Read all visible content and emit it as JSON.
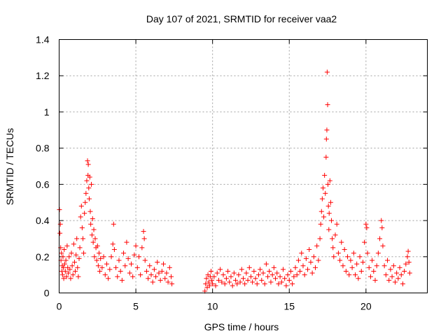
{
  "chart_data": {
    "type": "scatter",
    "title": "Day 107 of 2021, SRMTID for receiver vaa2",
    "xlabel": "GPS time / hours",
    "ylabel": "SRMTID / TECUs",
    "xlim": [
      0,
      24
    ],
    "ylim": [
      0,
      1.4
    ],
    "xticks": [
      0,
      5,
      10,
      15,
      20
    ],
    "yticks": [
      0,
      0.2,
      0.4,
      0.6,
      0.8,
      1.0,
      1.2,
      1.4
    ],
    "xtick_labels": [
      "0",
      "5",
      "10",
      "15",
      "20"
    ],
    "ytick_labels": [
      "0",
      "0.2",
      "0.4",
      "0.6",
      "0.8",
      "1",
      "1.2",
      "1.4"
    ],
    "grid": true,
    "marker": "+",
    "color": "#ff0000",
    "series": [
      {
        "name": "vaa2",
        "points": [
          [
            0.02,
            0.46
          ],
          [
            0.05,
            0.33
          ],
          [
            0.08,
            0.38
          ],
          [
            0.1,
            0.25
          ],
          [
            0.12,
            0.18
          ],
          [
            0.15,
            0.22
          ],
          [
            0.18,
            0.12
          ],
          [
            0.2,
            0.15
          ],
          [
            0.22,
            0.1
          ],
          [
            0.25,
            0.2
          ],
          [
            0.28,
            0.14
          ],
          [
            0.3,
            0.08
          ],
          [
            0.33,
            0.24
          ],
          [
            0.36,
            0.16
          ],
          [
            0.4,
            0.12
          ],
          [
            0.44,
            0.18
          ],
          [
            0.48,
            0.09
          ],
          [
            0.52,
            0.26
          ],
          [
            0.56,
            0.14
          ],
          [
            0.6,
            0.11
          ],
          [
            0.65,
            0.2
          ],
          [
            0.7,
            0.13
          ],
          [
            0.75,
            0.08
          ],
          [
            0.8,
            0.22
          ],
          [
            0.85,
            0.15
          ],
          [
            0.9,
            0.1
          ],
          [
            0.95,
            0.27
          ],
          [
            1.0,
            0.17
          ],
          [
            1.05,
            0.12
          ],
          [
            1.1,
            0.21
          ],
          [
            1.15,
            0.3
          ],
          [
            1.2,
            0.14
          ],
          [
            1.25,
            0.09
          ],
          [
            1.3,
            0.19
          ],
          [
            1.35,
            0.25
          ],
          [
            1.4,
            0.42
          ],
          [
            1.45,
            0.48
          ],
          [
            1.5,
            0.36
          ],
          [
            1.55,
            0.3
          ],
          [
            1.6,
            0.22
          ],
          [
            1.65,
            0.44
          ],
          [
            1.7,
            0.5
          ],
          [
            1.75,
            0.55
          ],
          [
            1.8,
            0.62
          ],
          [
            1.85,
            0.73
          ],
          [
            1.88,
            0.65
          ],
          [
            1.9,
            0.71
          ],
          [
            1.93,
            0.58
          ],
          [
            1.96,
            0.52
          ],
          [
            2.0,
            0.64
          ],
          [
            2.03,
            0.45
          ],
          [
            2.06,
            0.38
          ],
          [
            2.1,
            0.6
          ],
          [
            2.14,
            0.32
          ],
          [
            2.18,
            0.41
          ],
          [
            2.22,
            0.28
          ],
          [
            2.26,
            0.35
          ],
          [
            2.3,
            0.2
          ],
          [
            2.35,
            0.3
          ],
          [
            2.4,
            0.25
          ],
          [
            2.45,
            0.18
          ],
          [
            2.5,
            0.26
          ],
          [
            2.55,
            0.15
          ],
          [
            2.6,
            0.22
          ],
          [
            2.65,
            0.12
          ],
          [
            2.7,
            0.19
          ],
          [
            2.8,
            0.14
          ],
          [
            2.9,
            0.2
          ],
          [
            3.0,
            0.1
          ],
          [
            3.1,
            0.16
          ],
          [
            3.2,
            0.08
          ],
          [
            3.3,
            0.13
          ],
          [
            3.4,
            0.2
          ],
          [
            3.5,
            0.27
          ],
          [
            3.55,
            0.38
          ],
          [
            3.6,
            0.24
          ],
          [
            3.7,
            0.14
          ],
          [
            3.8,
            0.09
          ],
          [
            3.9,
            0.18
          ],
          [
            4.0,
            0.12
          ],
          [
            4.1,
            0.07
          ],
          [
            4.2,
            0.22
          ],
          [
            4.3,
            0.15
          ],
          [
            4.4,
            0.28
          ],
          [
            4.5,
            0.19
          ],
          [
            4.6,
            0.11
          ],
          [
            4.7,
            0.16
          ],
          [
            4.8,
            0.09
          ],
          [
            4.9,
            0.21
          ],
          [
            5.0,
            0.26
          ],
          [
            5.1,
            0.14
          ],
          [
            5.2,
            0.2
          ],
          [
            5.3,
            0.1
          ],
          [
            5.4,
            0.25
          ],
          [
            5.5,
            0.34
          ],
          [
            5.55,
            0.3
          ],
          [
            5.6,
            0.18
          ],
          [
            5.7,
            0.12
          ],
          [
            5.8,
            0.08
          ],
          [
            5.9,
            0.15
          ],
          [
            6.0,
            0.1
          ],
          [
            6.1,
            0.06
          ],
          [
            6.2,
            0.13
          ],
          [
            6.3,
            0.09
          ],
          [
            6.4,
            0.17
          ],
          [
            6.5,
            0.11
          ],
          [
            6.6,
            0.07
          ],
          [
            6.7,
            0.12
          ],
          [
            6.8,
            0.16
          ],
          [
            6.9,
            0.08
          ],
          [
            7.0,
            0.11
          ],
          [
            7.1,
            0.06
          ],
          [
            7.2,
            0.14
          ],
          [
            7.3,
            0.09
          ],
          [
            7.35,
            0.05
          ],
          [
            9.5,
            0.01
          ],
          [
            9.55,
            0.05
          ],
          [
            9.6,
            0.08
          ],
          [
            9.65,
            0.03
          ],
          [
            9.7,
            0.1
          ],
          [
            9.75,
            0.06
          ],
          [
            9.8,
            0.04
          ],
          [
            9.85,
            0.09
          ],
          [
            9.9,
            0.12
          ],
          [
            9.95,
            0.07
          ],
          [
            10.0,
            0.05
          ],
          [
            10.1,
            0.09
          ],
          [
            10.2,
            0.04
          ],
          [
            10.3,
            0.11
          ],
          [
            10.4,
            0.07
          ],
          [
            10.5,
            0.13
          ],
          [
            10.6,
            0.06
          ],
          [
            10.7,
            0.1
          ],
          [
            10.8,
            0.05
          ],
          [
            10.9,
            0.08
          ],
          [
            11.0,
            0.12
          ],
          [
            11.1,
            0.06
          ],
          [
            11.2,
            0.09
          ],
          [
            11.3,
            0.04
          ],
          [
            11.4,
            0.11
          ],
          [
            11.5,
            0.07
          ],
          [
            11.6,
            0.05
          ],
          [
            11.7,
            0.1
          ],
          [
            11.8,
            0.06
          ],
          [
            11.9,
            0.13
          ],
          [
            12.0,
            0.08
          ],
          [
            12.1,
            0.05
          ],
          [
            12.2,
            0.11
          ],
          [
            12.3,
            0.07
          ],
          [
            12.4,
            0.14
          ],
          [
            12.5,
            0.09
          ],
          [
            12.6,
            0.06
          ],
          [
            12.7,
            0.12
          ],
          [
            12.8,
            0.08
          ],
          [
            12.9,
            0.05
          ],
          [
            13.0,
            0.1
          ],
          [
            13.1,
            0.13
          ],
          [
            13.2,
            0.07
          ],
          [
            13.3,
            0.11
          ],
          [
            13.4,
            0.05
          ],
          [
            13.5,
            0.16
          ],
          [
            13.6,
            0.09
          ],
          [
            13.7,
            0.12
          ],
          [
            13.8,
            0.06
          ],
          [
            13.9,
            0.1
          ],
          [
            14.0,
            0.14
          ],
          [
            14.1,
            0.08
          ],
          [
            14.2,
            0.11
          ],
          [
            14.3,
            0.05
          ],
          [
            14.4,
            0.09
          ],
          [
            14.5,
            0.06
          ],
          [
            14.6,
            0.13
          ],
          [
            14.7,
            0.08
          ],
          [
            14.8,
            0.04
          ],
          [
            14.9,
            0.1
          ],
          [
            15.0,
            0.07
          ],
          [
            15.1,
            0.12
          ],
          [
            15.2,
            0.05
          ],
          [
            15.3,
            0.09
          ],
          [
            15.4,
            0.14
          ],
          [
            15.5,
            0.1
          ],
          [
            15.6,
            0.18
          ],
          [
            15.7,
            0.12
          ],
          [
            15.8,
            0.22
          ],
          [
            15.9,
            0.15
          ],
          [
            16.0,
            0.1
          ],
          [
            16.1,
            0.19
          ],
          [
            16.2,
            0.13
          ],
          [
            16.3,
            0.24
          ],
          [
            16.4,
            0.17
          ],
          [
            16.5,
            0.11
          ],
          [
            16.6,
            0.2
          ],
          [
            16.7,
            0.14
          ],
          [
            16.8,
            0.26
          ],
          [
            16.9,
            0.18
          ],
          [
            17.0,
            0.3
          ],
          [
            17.05,
            0.38
          ],
          [
            17.1,
            0.45
          ],
          [
            17.15,
            0.52
          ],
          [
            17.2,
            0.58
          ],
          [
            17.25,
            0.42
          ],
          [
            17.3,
            0.65
          ],
          [
            17.35,
            0.55
          ],
          [
            17.4,
            0.75
          ],
          [
            17.42,
            0.85
          ],
          [
            17.45,
            0.9
          ],
          [
            17.47,
            1.22
          ],
          [
            17.5,
            1.04
          ],
          [
            17.52,
            0.6
          ],
          [
            17.55,
            0.48
          ],
          [
            17.58,
            0.35
          ],
          [
            17.6,
            0.44
          ],
          [
            17.65,
            0.62
          ],
          [
            17.7,
            0.5
          ],
          [
            17.75,
            0.4
          ],
          [
            17.8,
            0.3
          ],
          [
            17.85,
            0.25
          ],
          [
            17.9,
            0.2
          ],
          [
            18.0,
            0.32
          ],
          [
            18.1,
            0.38
          ],
          [
            18.2,
            0.22
          ],
          [
            18.3,
            0.18
          ],
          [
            18.4,
            0.28
          ],
          [
            18.5,
            0.15
          ],
          [
            18.6,
            0.24
          ],
          [
            18.7,
            0.12
          ],
          [
            18.8,
            0.2
          ],
          [
            18.9,
            0.1
          ],
          [
            19.0,
            0.18
          ],
          [
            19.1,
            0.14
          ],
          [
            19.2,
            0.22
          ],
          [
            19.3,
            0.1
          ],
          [
            19.4,
            0.16
          ],
          [
            19.5,
            0.08
          ],
          [
            19.6,
            0.2
          ],
          [
            19.7,
            0.12
          ],
          [
            19.8,
            0.17
          ],
          [
            19.9,
            0.28
          ],
          [
            20.0,
            0.38
          ],
          [
            20.05,
            0.36
          ],
          [
            20.1,
            0.22
          ],
          [
            20.2,
            0.14
          ],
          [
            20.3,
            0.09
          ],
          [
            20.4,
            0.18
          ],
          [
            20.5,
            0.12
          ],
          [
            20.6,
            0.07
          ],
          [
            20.7,
            0.15
          ],
          [
            20.8,
            0.22
          ],
          [
            20.9,
            0.3
          ],
          [
            21.0,
            0.4
          ],
          [
            21.05,
            0.36
          ],
          [
            21.1,
            0.26
          ],
          [
            21.2,
            0.15
          ],
          [
            21.3,
            0.1
          ],
          [
            21.4,
            0.18
          ],
          [
            21.5,
            0.07
          ],
          [
            21.6,
            0.13
          ],
          [
            21.7,
            0.09
          ],
          [
            21.8,
            0.15
          ],
          [
            21.9,
            0.06
          ],
          [
            22.0,
            0.11
          ],
          [
            22.1,
            0.08
          ],
          [
            22.2,
            0.14
          ],
          [
            22.3,
            0.1
          ],
          [
            22.4,
            0.05
          ],
          [
            22.5,
            0.12
          ],
          [
            22.6,
            0.16
          ],
          [
            22.7,
            0.2
          ],
          [
            22.75,
            0.23
          ],
          [
            22.8,
            0.17
          ],
          [
            22.85,
            0.11
          ]
        ]
      }
    ]
  }
}
